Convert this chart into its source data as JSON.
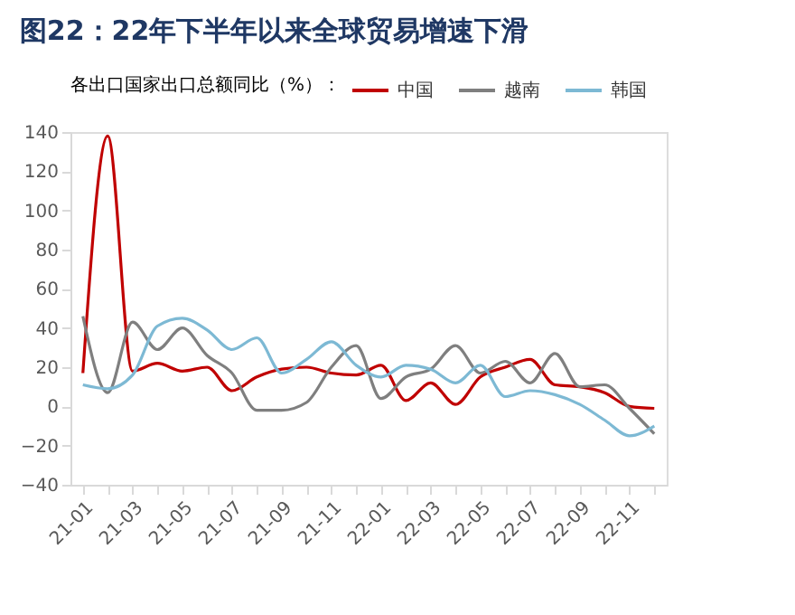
{
  "chart_data": {
    "type": "line",
    "title": "图22：22年下半年以来全球贸易增速下滑",
    "legend_title": "各出口国家出口总额同比（%）：",
    "categories": [
      "21-01",
      null,
      "21-03",
      null,
      "21-05",
      null,
      "21-07",
      null,
      "21-09",
      null,
      "21-11",
      null,
      "22-01",
      null,
      "22-03",
      null,
      "22-05",
      null,
      "22-07",
      null,
      "22-09",
      null,
      "22-11",
      null
    ],
    "series": [
      {
        "name": "中国",
        "color": "#c00000",
        "values": [
          17,
          138,
          18,
          22,
          18,
          20,
          8,
          15,
          19,
          20,
          17,
          16,
          21,
          3,
          12,
          1,
          15,
          20,
          24,
          11,
          10,
          7,
          0,
          -1
        ]
      },
      {
        "name": "越南",
        "color": "#7f7f7f",
        "values": [
          46,
          7,
          43,
          29,
          40,
          26,
          17,
          -2,
          -2,
          2,
          20,
          31,
          4,
          15,
          19,
          31,
          17,
          23,
          12,
          27,
          10,
          11,
          -1,
          -14
        ]
      },
      {
        "name": "韩国",
        "color": "#7db9d4",
        "values": [
          11,
          9,
          16,
          41,
          45,
          39,
          29,
          35,
          17,
          24,
          33,
          21,
          15,
          21,
          19,
          12,
          21,
          5,
          8,
          6,
          1,
          -7,
          -15,
          -10
        ]
      }
    ],
    "ylim": [
      -40,
      140
    ],
    "yticks": [
      -40,
      -20,
      0,
      20,
      40,
      60,
      80,
      100,
      120,
      140
    ],
    "grid": false,
    "legend": "top",
    "marker": "none",
    "line_style": "solid"
  }
}
